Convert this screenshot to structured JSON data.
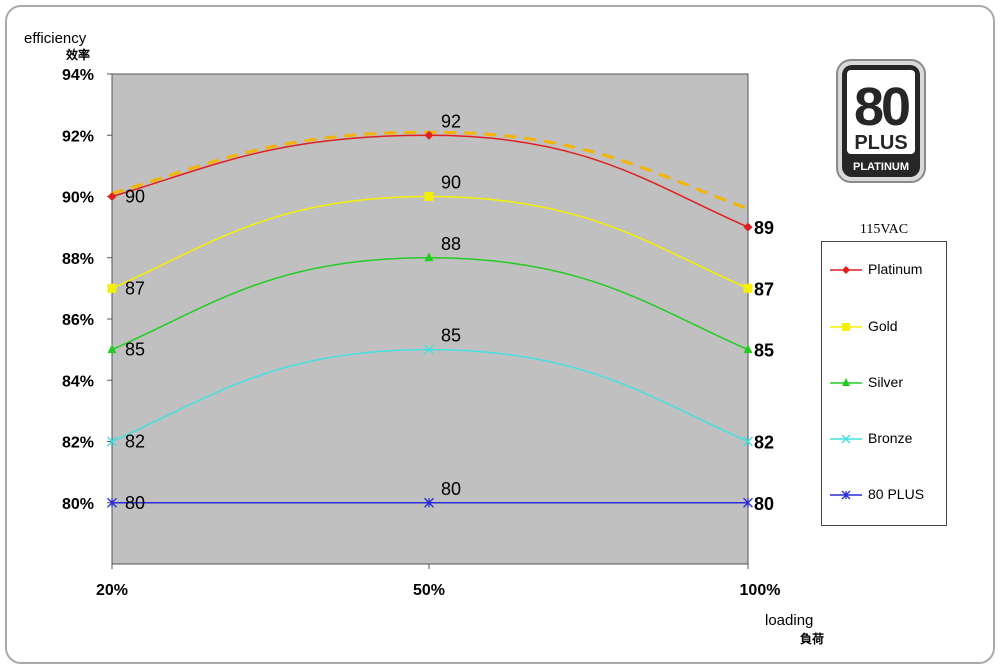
{
  "y_axis_label_en": "efficiency",
  "y_axis_label_zh": "效率",
  "x_axis_label_en": "loading",
  "x_axis_label_zh": "負荷",
  "badge": {
    "number": "80",
    "plus": "PLUS",
    "tier": "PLATINUM"
  },
  "legend_title": "115VAC",
  "colors": {
    "plot_bg": "#c0c0c0",
    "Platinum": "#e02020",
    "Gold": "#f5f000",
    "Silver": "#22cc22",
    "Bronze": "#44e0e0",
    "80 PLUS": "#2b2bd8",
    "dashed": "#f4b400"
  },
  "chart_data": {
    "type": "line",
    "categories": [
      "20%",
      "50%",
      "100%"
    ],
    "ylim": [
      78,
      94
    ],
    "yticks": [
      "80%",
      "82%",
      "84%",
      "86%",
      "88%",
      "90%",
      "92%",
      "94%"
    ],
    "grid": false,
    "legend_position": "right",
    "series": [
      {
        "name": "Platinum",
        "values": [
          90,
          92,
          89
        ],
        "labels": [
          "90",
          "92",
          "89"
        ],
        "marker": "diamond"
      },
      {
        "name": "Gold",
        "values": [
          87,
          90,
          87
        ],
        "labels": [
          "87",
          "90",
          "87"
        ],
        "marker": "square"
      },
      {
        "name": "Silver",
        "values": [
          85,
          88,
          85
        ],
        "labels": [
          "85",
          "88",
          "85"
        ],
        "marker": "triangle"
      },
      {
        "name": "Bronze",
        "values": [
          82,
          85,
          82
        ],
        "labels": [
          "82",
          "85",
          "82"
        ],
        "marker": "x"
      },
      {
        "name": "80 PLUS",
        "values": [
          80,
          80,
          80
        ],
        "labels": [
          "80",
          "80",
          "80"
        ],
        "marker": "star"
      }
    ],
    "dashed_curve": {
      "values": [
        90.1,
        92.1,
        89.6
      ]
    }
  }
}
